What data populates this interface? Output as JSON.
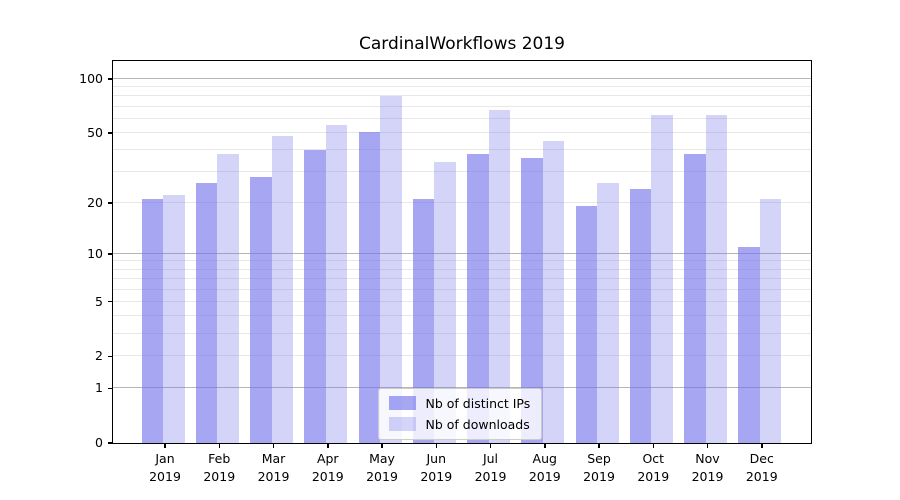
{
  "figure": {
    "title": "CardinalWorkflows 2019"
  },
  "colors": {
    "bar_distinct_ips": "rgba(112,112,235,0.62)",
    "bar_downloads": "rgba(112,112,235,0.30)",
    "grid_major": "#b6b6b6",
    "grid_minor": "#e8e8e8",
    "axis": "#000000",
    "legend_border": "#cccccc"
  },
  "chart_data": {
    "type": "bar",
    "title": "CardinalWorkflows 2019",
    "categories": [
      "Jan 2019",
      "Feb 2019",
      "Mar 2019",
      "Apr 2019",
      "May 2019",
      "Jun 2019",
      "Jul 2019",
      "Aug 2019",
      "Sep 2019",
      "Oct 2019",
      "Nov 2019",
      "Dec 2019"
    ],
    "series": [
      {
        "name": "Nb of distinct IPs",
        "color": "rgba(112,112,235,0.62)",
        "values": [
          21,
          26,
          28,
          40,
          50,
          21,
          38,
          36,
          19,
          24,
          38,
          11
        ]
      },
      {
        "name": "Nb of downloads",
        "color": "rgba(112,112,235,0.30)",
        "values": [
          22,
          38,
          48,
          55,
          80,
          34,
          67,
          45,
          26,
          63,
          63,
          21
        ]
      }
    ],
    "yscale": "log1p",
    "ylim": [
      0,
      125
    ],
    "y_tick_values": [
      0,
      1,
      2,
      5,
      10,
      20,
      50,
      100
    ],
    "y_tick_labels": [
      "0",
      "1",
      "2",
      "5",
      "10",
      "20",
      "50",
      "100"
    ],
    "y_gridlines_major": [
      1,
      10,
      100
    ],
    "y_gridlines_minor": [
      2,
      3,
      4,
      5,
      6,
      7,
      8,
      9,
      20,
      30,
      40,
      50,
      60,
      70,
      80,
      90
    ],
    "grid": true,
    "legend": {
      "position": "lower center",
      "labels": [
        "Nb of distinct IPs",
        "Nb of downloads"
      ]
    }
  }
}
